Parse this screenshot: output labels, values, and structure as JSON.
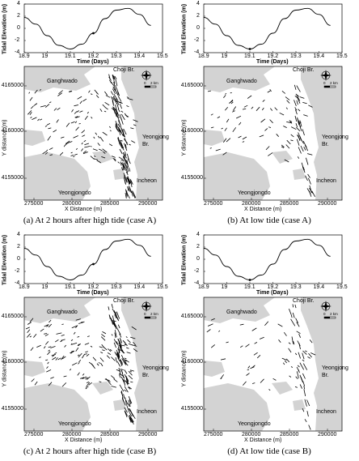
{
  "figure": {
    "panels": [
      {
        "caption": "(a) At 2 hours after high tide (case A)"
      },
      {
        "caption": "(b) At low tide (case A)"
      },
      {
        "caption": "(c) At 2 hours after high tide (case B)"
      },
      {
        "caption": "(d) At low tide (case B)"
      }
    ],
    "tide_chart": {
      "ylabel": "Tidal Elevation (m)",
      "xlabel": "Time (Days)",
      "x_ticks": [
        "18.9",
        "19",
        "19.1",
        "19.2",
        "19.3",
        "19.4",
        "19.5"
      ],
      "y_ticks": [
        "4",
        "2",
        "0",
        "-2",
        "-4"
      ]
    },
    "map": {
      "ylabel": "Y distance (m)",
      "xlabel": "X Distance (m)",
      "x_ticks": [
        "275000",
        "280000",
        "285000",
        "290000"
      ],
      "y_ticks": [
        "4165000",
        "4160000",
        "4155000"
      ],
      "places": {
        "choji": "Choji Br.",
        "ganghwado": "Ganghwado",
        "yeongjong": "Yeongjong",
        "br": "Br.",
        "yeongjongdo": "Yeongjongdo",
        "incheon": "Incheon"
      },
      "scale": {
        "zero": "0",
        "dist": "2 km"
      }
    }
  },
  "chart_data": {
    "type": "line",
    "x": [
      18.9,
      18.95,
      19.0,
      19.05,
      19.1,
      19.15,
      19.2,
      19.25,
      19.3,
      19.35,
      19.4,
      19.45
    ],
    "y": [
      1.8,
      0.7,
      -1.2,
      -2.8,
      -3.4,
      -2.6,
      -0.8,
      1.6,
      3.0,
      3.3,
      2.3,
      0.5
    ],
    "xlabel": "Time (Days)",
    "ylabel": "Tidal Elevation (m)",
    "xlim": [
      18.9,
      19.5
    ],
    "ylim": [
      -4,
      4
    ]
  }
}
